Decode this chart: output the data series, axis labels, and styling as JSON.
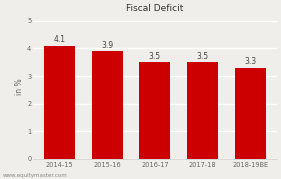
{
  "categories": [
    "2014-15",
    "2015-16",
    "2016-17",
    "2017-18",
    "2018-19BE"
  ],
  "values": [
    4.1,
    3.9,
    3.5,
    3.5,
    3.3
  ],
  "bar_color": "#cc0000",
  "title": "Fiscal Deficit",
  "ylabel": "in %",
  "ylim": [
    0,
    5.2
  ],
  "yticks": [
    0,
    1,
    2,
    3,
    4,
    5
  ],
  "background_color": "#f0eeea",
  "plot_bg_color": "#f0eeea",
  "grid_color": "#ffffff",
  "watermark": "www.equitymaster.com",
  "title_fontsize": 6.5,
  "label_fontsize": 5.5,
  "tick_fontsize": 4.8,
  "ylabel_fontsize": 5.5,
  "watermark_fontsize": 4.0
}
